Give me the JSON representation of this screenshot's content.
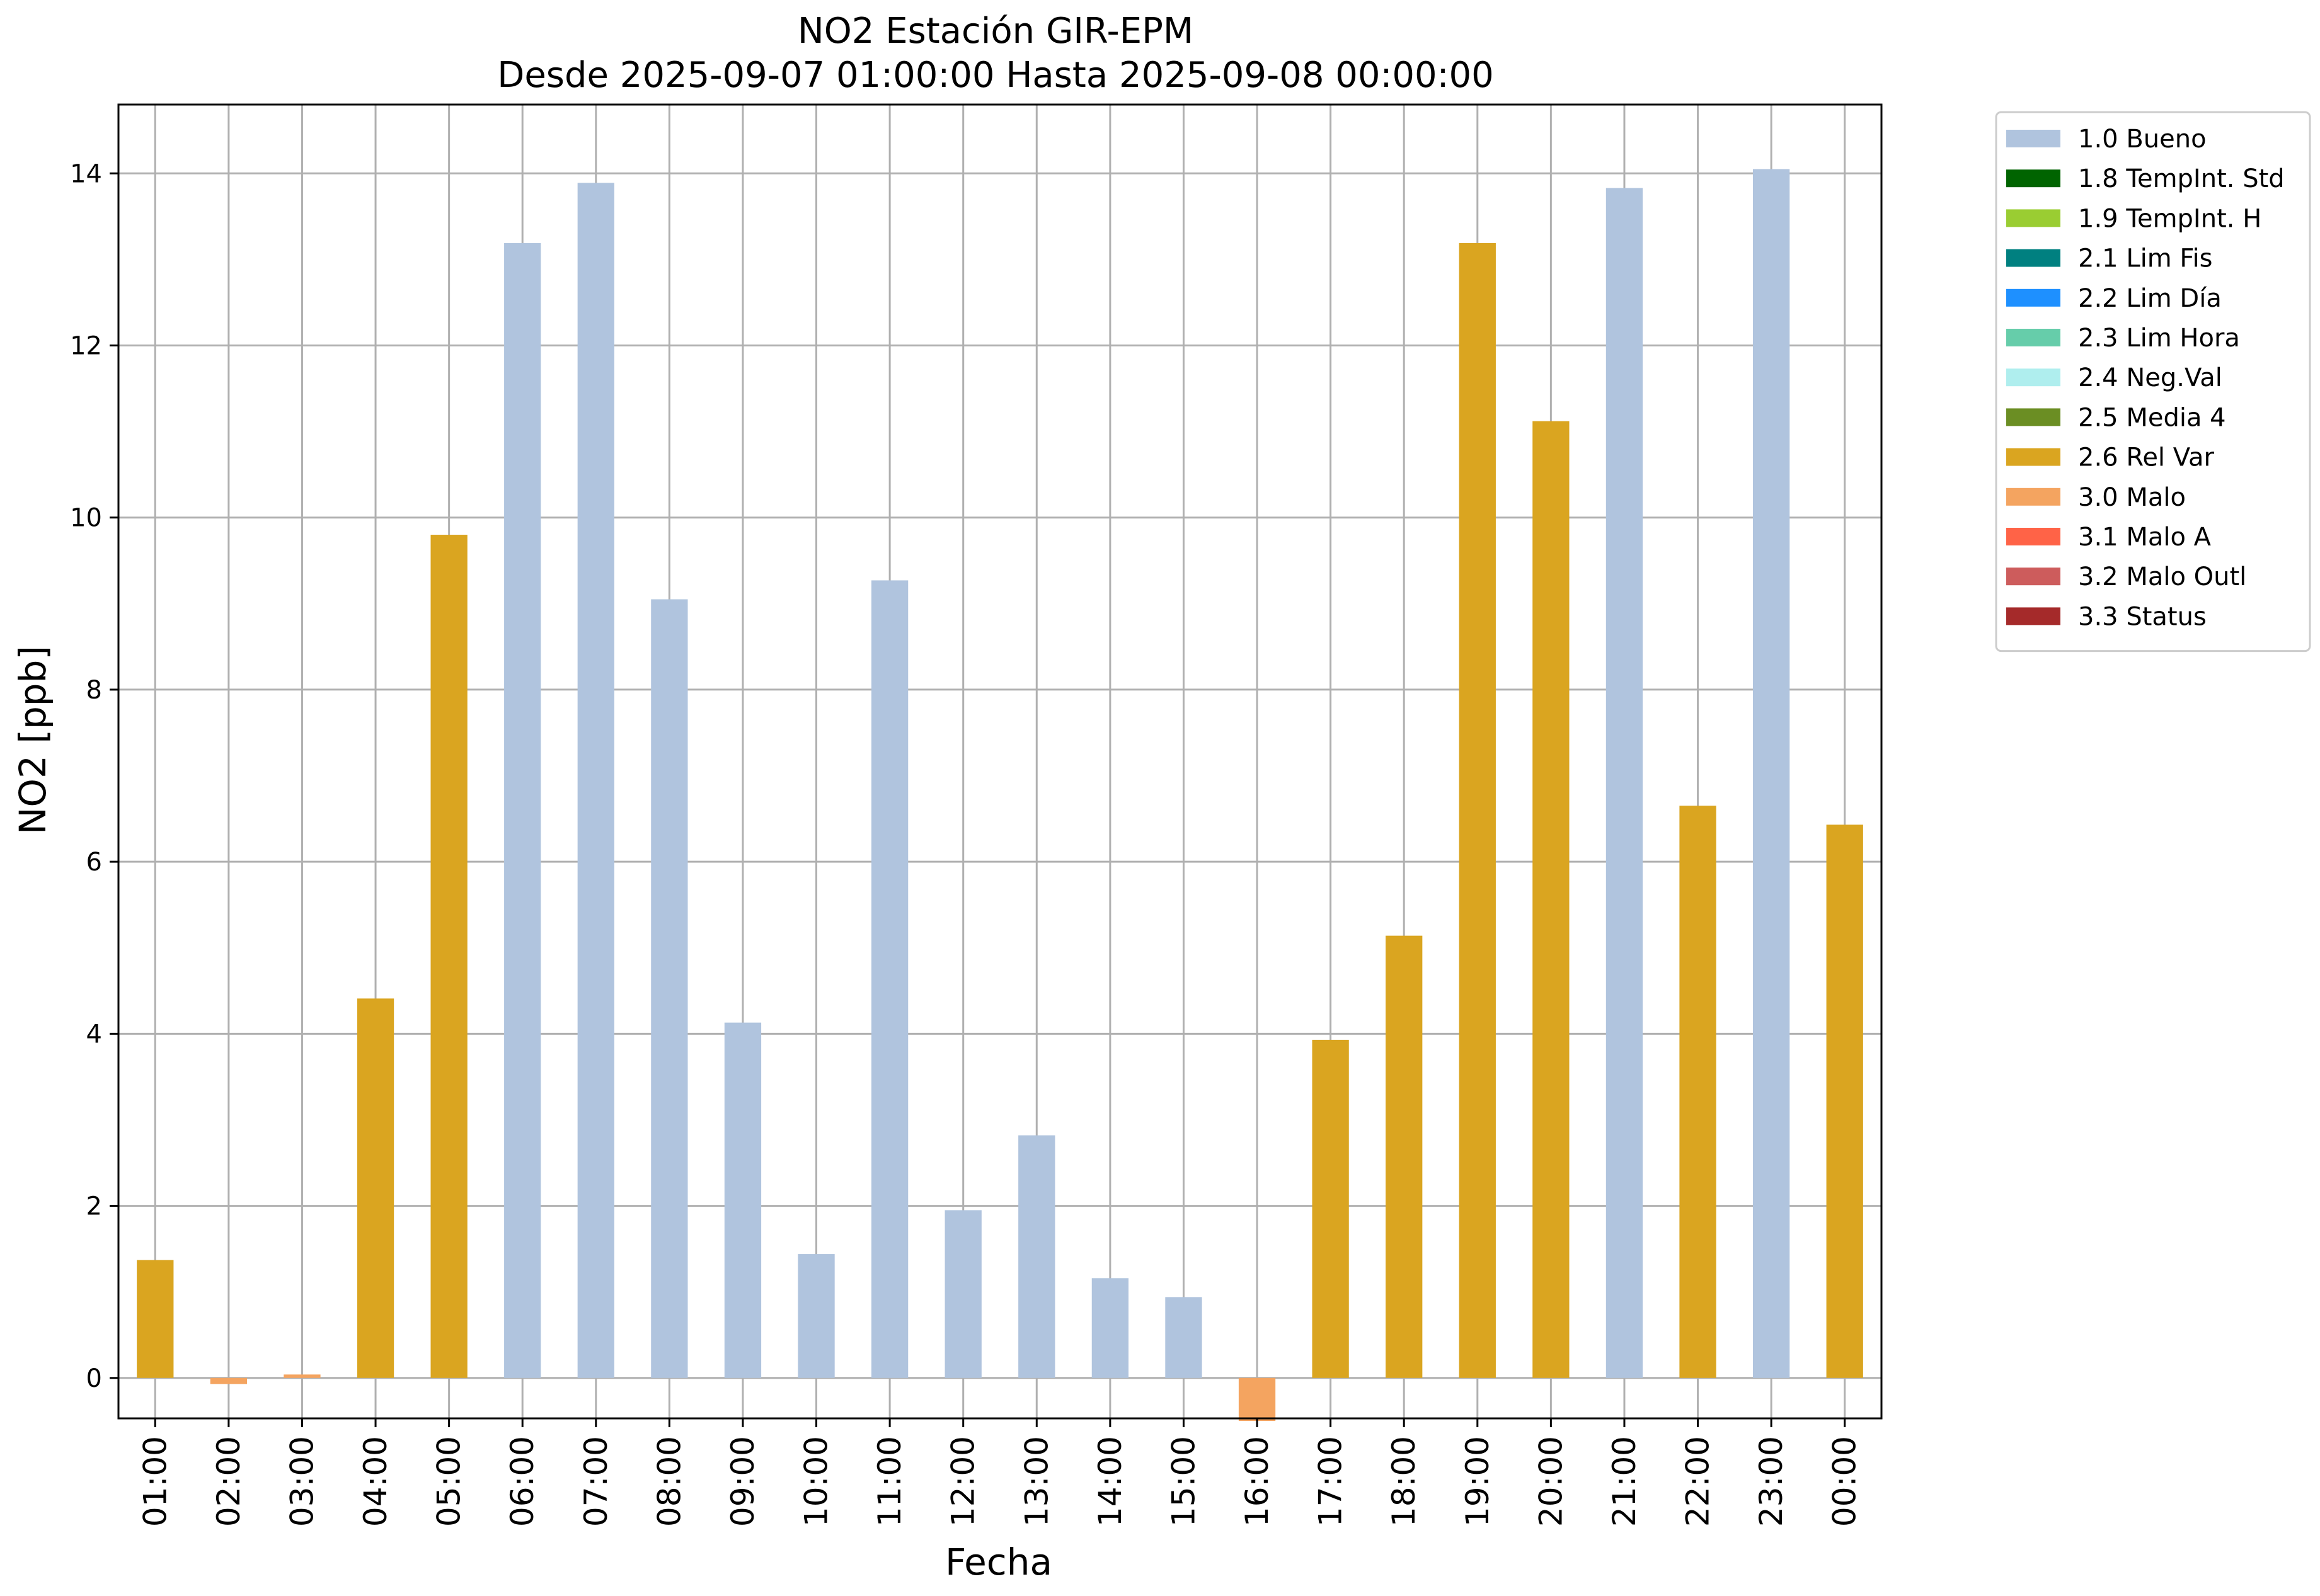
{
  "chart_data": {
    "type": "bar",
    "title": "NO2 Estación GIR-EPM",
    "subtitle": "Desde 2025-09-07 01:00:00 Hasta 2025-09-08 00:00:00",
    "xlabel": "Fecha",
    "ylabel": "NO2 [ppb]",
    "ylim": [
      -0.47,
      14.8
    ],
    "yticks": [
      0,
      2,
      4,
      6,
      8,
      10,
      12,
      14
    ],
    "grid": true,
    "legend_placement": "outside-top-right",
    "categories": [
      "01:00",
      "02:00",
      "03:00",
      "04:00",
      "05:00",
      "06:00",
      "07:00",
      "08:00",
      "09:00",
      "10:00",
      "11:00",
      "12:00",
      "13:00",
      "14:00",
      "15:00",
      "16:00",
      "17:00",
      "18:00",
      "19:00",
      "20:00",
      "21:00",
      "22:00",
      "23:00",
      "00:00"
    ],
    "values": [
      1.37,
      -0.07,
      0.04,
      4.41,
      9.8,
      13.19,
      13.89,
      9.05,
      4.13,
      1.44,
      9.27,
      1.95,
      2.82,
      1.16,
      0.94,
      -0.5,
      3.93,
      5.14,
      13.19,
      11.12,
      13.83,
      6.65,
      14.05,
      6.43
    ],
    "flags": [
      "2.6 Rel Var",
      "3.0 Malo",
      "3.0 Malo",
      "2.6 Rel Var",
      "2.6 Rel Var",
      "1.0 Bueno",
      "1.0 Bueno",
      "1.0 Bueno",
      "1.0 Bueno",
      "1.0 Bueno",
      "1.0 Bueno",
      "1.0 Bueno",
      "1.0 Bueno",
      "1.0 Bueno",
      "1.0 Bueno",
      "3.0 Malo",
      "2.6 Rel Var",
      "2.6 Rel Var",
      "2.6 Rel Var",
      "2.6 Rel Var",
      "1.0 Bueno",
      "2.6 Rel Var",
      "1.0 Bueno",
      "2.6 Rel Var"
    ],
    "legend": [
      {
        "label": "1.0 Bueno",
        "color": "#b0c4de"
      },
      {
        "label": "1.8 TempInt. Std",
        "color": "#006400"
      },
      {
        "label": "1.9 TempInt. H",
        "color": "#9acd32"
      },
      {
        "label": "2.1 Lim Fis",
        "color": "#008080"
      },
      {
        "label": "2.2 Lim Día",
        "color": "#1e90ff"
      },
      {
        "label": "2.3 Lim Hora",
        "color": "#66cdaa"
      },
      {
        "label": "2.4 Neg.Val",
        "color": "#afeeee"
      },
      {
        "label": "2.5 Media 4",
        "color": "#6b8e23"
      },
      {
        "label": "2.6 Rel Var",
        "color": "#daa520"
      },
      {
        "label": "3.0 Malo",
        "color": "#f4a460"
      },
      {
        "label": "3.1 Malo A",
        "color": "#ff6347"
      },
      {
        "label": "3.2 Malo Outl",
        "color": "#cd5c5c"
      },
      {
        "label": "3.3 Status",
        "color": "#a52a2a"
      }
    ]
  }
}
